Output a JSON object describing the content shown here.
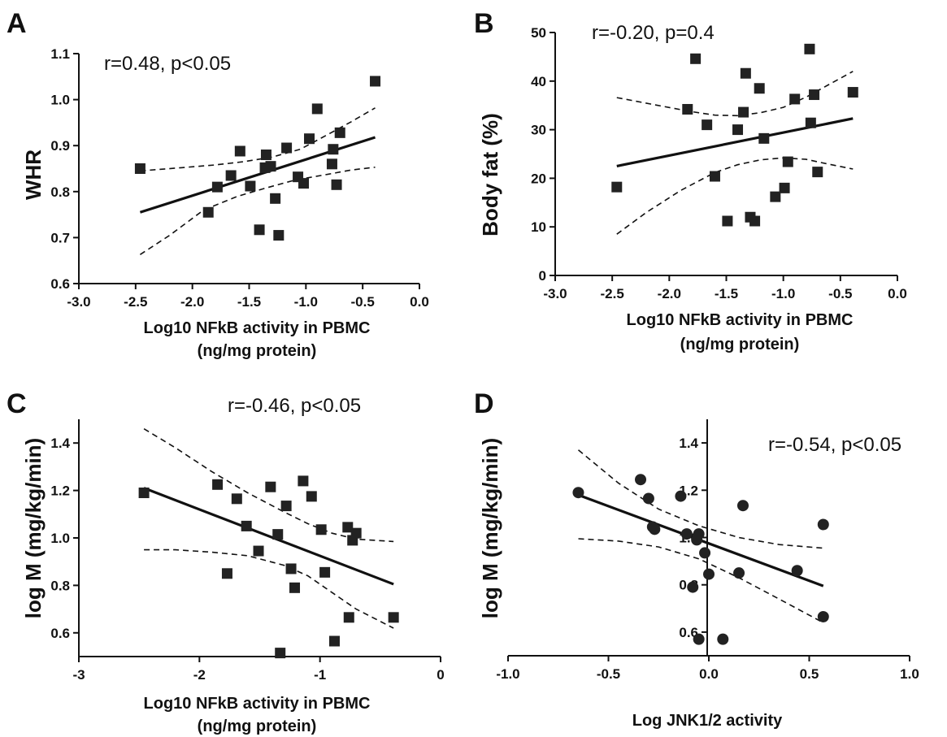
{
  "chart_data": [
    {
      "panel": "A",
      "type": "scatter",
      "annotation": "r=0.48, p<0.05",
      "xlabel": [
        "Log10 NFkB activity in PBMC",
        "(ng/mg protein)"
      ],
      "ylabel": "WHR",
      "xlim": [
        -3.0,
        0.0
      ],
      "ylim": [
        0.6,
        1.1
      ],
      "xticks": [
        "-3.0",
        "-2.5",
        "-2.0",
        "-1.5",
        "-1.0",
        "-0.5",
        "0.0"
      ],
      "yticks": [
        "0.6",
        "0.7",
        "0.8",
        "0.9",
        "1.0",
        "1.1"
      ],
      "xtick_values": [
        -3.0,
        -2.5,
        -2.0,
        -1.5,
        -1.0,
        -0.5,
        0.0
      ],
      "ytick_values": [
        0.6,
        0.7,
        0.8,
        0.9,
        1.0,
        1.1
      ],
      "marker": "square",
      "points": [
        [
          -2.46,
          0.85
        ],
        [
          -1.86,
          0.755
        ],
        [
          -1.78,
          0.81
        ],
        [
          -1.66,
          0.835
        ],
        [
          -1.58,
          0.888
        ],
        [
          -1.49,
          0.812
        ],
        [
          -1.41,
          0.717
        ],
        [
          -1.36,
          0.852
        ],
        [
          -1.35,
          0.88
        ],
        [
          -1.31,
          0.855
        ],
        [
          -1.27,
          0.785
        ],
        [
          -1.24,
          0.705
        ],
        [
          -1.17,
          0.895
        ],
        [
          -1.07,
          0.832
        ],
        [
          -1.02,
          0.818
        ],
        [
          -0.97,
          0.915
        ],
        [
          -0.9,
          0.98
        ],
        [
          -0.77,
          0.86
        ],
        [
          -0.76,
          0.892
        ],
        [
          -0.73,
          0.815
        ],
        [
          -0.7,
          0.928
        ],
        [
          -0.39,
          1.04
        ]
      ],
      "fit": {
        "x": [
          -2.46,
          -0.39
        ],
        "y": [
          0.755,
          0.918
        ]
      },
      "ci_upper": [
        [
          -2.46,
          0.845
        ],
        [
          -2.1,
          0.852
        ],
        [
          -1.8,
          0.858
        ],
        [
          -1.55,
          0.865
        ],
        [
          -1.3,
          0.875
        ],
        [
          -1.05,
          0.892
        ],
        [
          -0.8,
          0.925
        ],
        [
          -0.6,
          0.952
        ],
        [
          -0.39,
          0.982
        ]
      ],
      "ci_lower": [
        [
          -2.46,
          0.663
        ],
        [
          -2.2,
          0.705
        ],
        [
          -1.9,
          0.76
        ],
        [
          -1.6,
          0.79
        ],
        [
          -1.35,
          0.808
        ],
        [
          -1.1,
          0.825
        ],
        [
          -0.8,
          0.838
        ],
        [
          -0.6,
          0.847
        ],
        [
          -0.39,
          0.853
        ]
      ]
    },
    {
      "panel": "B",
      "type": "scatter",
      "annotation": "r=-0.20, p=0.4",
      "xlabel": [
        "Log10 NFkB activity in PBMC",
        "(ng/mg protein)"
      ],
      "ylabel": "Body fat (%)",
      "xlim": [
        -3.0,
        0.0
      ],
      "ylim": [
        0,
        50
      ],
      "xticks": [
        "-3.0",
        "-2.5",
        "-2.0",
        "-1.5",
        "-1.0",
        "-0.5",
        "0.0"
      ],
      "yticks": [
        "0",
        "10",
        "20",
        "30",
        "40",
        "50"
      ],
      "xtick_values": [
        -3.0,
        -2.5,
        -2.0,
        -1.5,
        -1.0,
        -0.5,
        0.0
      ],
      "ytick_values": [
        0,
        10,
        20,
        30,
        40,
        50
      ],
      "marker": "square",
      "points": [
        [
          -2.46,
          18.2
        ],
        [
          -1.84,
          34.2
        ],
        [
          -1.77,
          44.6
        ],
        [
          -1.67,
          31.0
        ],
        [
          -1.6,
          20.4
        ],
        [
          -1.49,
          11.2
        ],
        [
          -1.4,
          30.0
        ],
        [
          -1.35,
          33.6
        ],
        [
          -1.33,
          41.6
        ],
        [
          -1.29,
          12.0
        ],
        [
          -1.25,
          11.2
        ],
        [
          -1.21,
          38.5
        ],
        [
          -1.17,
          28.2
        ],
        [
          -1.07,
          16.2
        ],
        [
          -0.99,
          18.0
        ],
        [
          -0.96,
          23.4
        ],
        [
          -0.9,
          36.3
        ],
        [
          -0.77,
          46.6
        ],
        [
          -0.76,
          31.4
        ],
        [
          -0.73,
          37.2
        ],
        [
          -0.7,
          21.3
        ],
        [
          -0.39,
          37.7
        ]
      ],
      "fit": {
        "x": [
          -2.46,
          -0.39
        ],
        "y": [
          22.5,
          32.3
        ]
      },
      "ci_upper": [
        [
          -2.46,
          36.6
        ],
        [
          -2.1,
          35.0
        ],
        [
          -1.8,
          33.7
        ],
        [
          -1.6,
          33.0
        ],
        [
          -1.4,
          32.9
        ],
        [
          -1.2,
          33.5
        ],
        [
          -1.0,
          34.6
        ],
        [
          -0.8,
          36.7
        ],
        [
          -0.6,
          39.3
        ],
        [
          -0.39,
          42.0
        ]
      ],
      "ci_lower": [
        [
          -2.46,
          8.5
        ],
        [
          -2.2,
          13.0
        ],
        [
          -1.9,
          17.5
        ],
        [
          -1.6,
          21.2
        ],
        [
          -1.4,
          22.8
        ],
        [
          -1.2,
          23.8
        ],
        [
          -1.0,
          24.2
        ],
        [
          -0.8,
          23.9
        ],
        [
          -0.6,
          22.9
        ],
        [
          -0.39,
          21.9
        ]
      ]
    },
    {
      "panel": "C",
      "type": "scatter",
      "annotation": "r=-0.46, p<0.05",
      "xlabel": [
        "Log10 NFkB activity in PBMC",
        "(ng/mg protein)"
      ],
      "ylabel": "log M (mg/kg/min)",
      "xlim": [
        -3,
        0
      ],
      "ylim": [
        0.5,
        1.5
      ],
      "xticks": [
        "-3",
        "-2",
        "-1",
        "0"
      ],
      "yticks": [
        "0.6",
        "0.8",
        "1.0",
        "1.2",
        "1.4"
      ],
      "xtick_values": [
        -3,
        -2,
        -1,
        0
      ],
      "ytick_values": [
        0.6,
        0.8,
        1.0,
        1.2,
        1.4
      ],
      "marker": "square",
      "points": [
        [
          -2.46,
          1.19
        ],
        [
          -1.85,
          1.225
        ],
        [
          -1.77,
          0.85
        ],
        [
          -1.69,
          1.165
        ],
        [
          -1.61,
          1.05
        ],
        [
          -1.51,
          0.945
        ],
        [
          -1.41,
          1.215
        ],
        [
          -1.35,
          1.015
        ],
        [
          -1.33,
          0.515
        ],
        [
          -1.28,
          1.135
        ],
        [
          -1.24,
          0.87
        ],
        [
          -1.21,
          0.79
        ],
        [
          -1.14,
          1.24
        ],
        [
          -1.07,
          1.175
        ],
        [
          -0.99,
          1.035
        ],
        [
          -0.96,
          0.855
        ],
        [
          -0.88,
          0.565
        ],
        [
          -0.77,
          1.045
        ],
        [
          -0.76,
          0.665
        ],
        [
          -0.73,
          0.99
        ],
        [
          -0.7,
          1.02
        ],
        [
          -0.39,
          0.665
        ]
      ],
      "fit": {
        "x": [
          -2.46,
          -0.39
        ],
        "y": [
          1.21,
          0.805
        ]
      },
      "ci_upper": [
        [
          -2.46,
          1.46
        ],
        [
          -2.2,
          1.38
        ],
        [
          -1.9,
          1.28
        ],
        [
          -1.6,
          1.19
        ],
        [
          -1.3,
          1.11
        ],
        [
          -1.1,
          1.06
        ],
        [
          -0.9,
          1.02
        ],
        [
          -0.7,
          0.995
        ],
        [
          -0.39,
          0.985
        ]
      ],
      "ci_lower": [
        [
          -2.46,
          0.95
        ],
        [
          -2.2,
          0.95
        ],
        [
          -1.9,
          0.94
        ],
        [
          -1.6,
          0.925
        ],
        [
          -1.3,
          0.885
        ],
        [
          -1.1,
          0.84
        ],
        [
          -0.9,
          0.77
        ],
        [
          -0.7,
          0.7
        ],
        [
          -0.39,
          0.62
        ]
      ]
    },
    {
      "panel": "D",
      "type": "scatter",
      "annotation": "r=-0.54, p<0.05",
      "xlabel": [
        "Log JNK1/2 activity"
      ],
      "ylabel": "log M (mg/kg/min)",
      "xlim": [
        -1.0,
        1.0
      ],
      "ylim": [
        0.5,
        1.5
      ],
      "xticks": [
        "-1.0",
        "-0.5",
        "0.0",
        "0.5",
        "1.0"
      ],
      "yticks": [
        "0.6",
        "0.8",
        "1.0",
        "1.2",
        "1.4"
      ],
      "xtick_values": [
        -1.0,
        -0.5,
        0.0,
        0.5,
        1.0
      ],
      "ytick_values": [
        0.6,
        0.8,
        1.0,
        1.2,
        1.4
      ],
      "marker": "circle",
      "points": [
        [
          -0.65,
          1.19
        ],
        [
          -0.34,
          1.245
        ],
        [
          -0.3,
          1.165
        ],
        [
          -0.28,
          1.045
        ],
        [
          -0.27,
          1.035
        ],
        [
          -0.14,
          1.175
        ],
        [
          -0.11,
          1.015
        ],
        [
          -0.08,
          0.79
        ],
        [
          -0.06,
          0.99
        ],
        [
          -0.05,
          1.015
        ],
        [
          -0.02,
          0.935
        ],
        [
          0.0,
          0.845
        ],
        [
          -0.05,
          0.57
        ],
        [
          0.07,
          0.57
        ],
        [
          0.15,
          0.85
        ],
        [
          0.17,
          1.135
        ],
        [
          0.44,
          0.86
        ],
        [
          0.57,
          1.055
        ],
        [
          0.57,
          0.665
        ]
      ],
      "fit": {
        "x": [
          -0.65,
          0.57
        ],
        "y": [
          1.18,
          0.795
        ]
      },
      "ci_upper": [
        [
          -0.65,
          1.37
        ],
        [
          -0.45,
          1.23
        ],
        [
          -0.25,
          1.12
        ],
        [
          -0.05,
          1.05
        ],
        [
          0.15,
          1.0
        ],
        [
          0.35,
          0.97
        ],
        [
          0.57,
          0.955
        ]
      ],
      "ci_lower": [
        [
          -0.65,
          0.995
        ],
        [
          -0.45,
          0.985
        ],
        [
          -0.25,
          0.96
        ],
        [
          -0.05,
          0.91
        ],
        [
          0.15,
          0.83
        ],
        [
          0.35,
          0.74
        ],
        [
          0.57,
          0.64
        ]
      ]
    }
  ]
}
